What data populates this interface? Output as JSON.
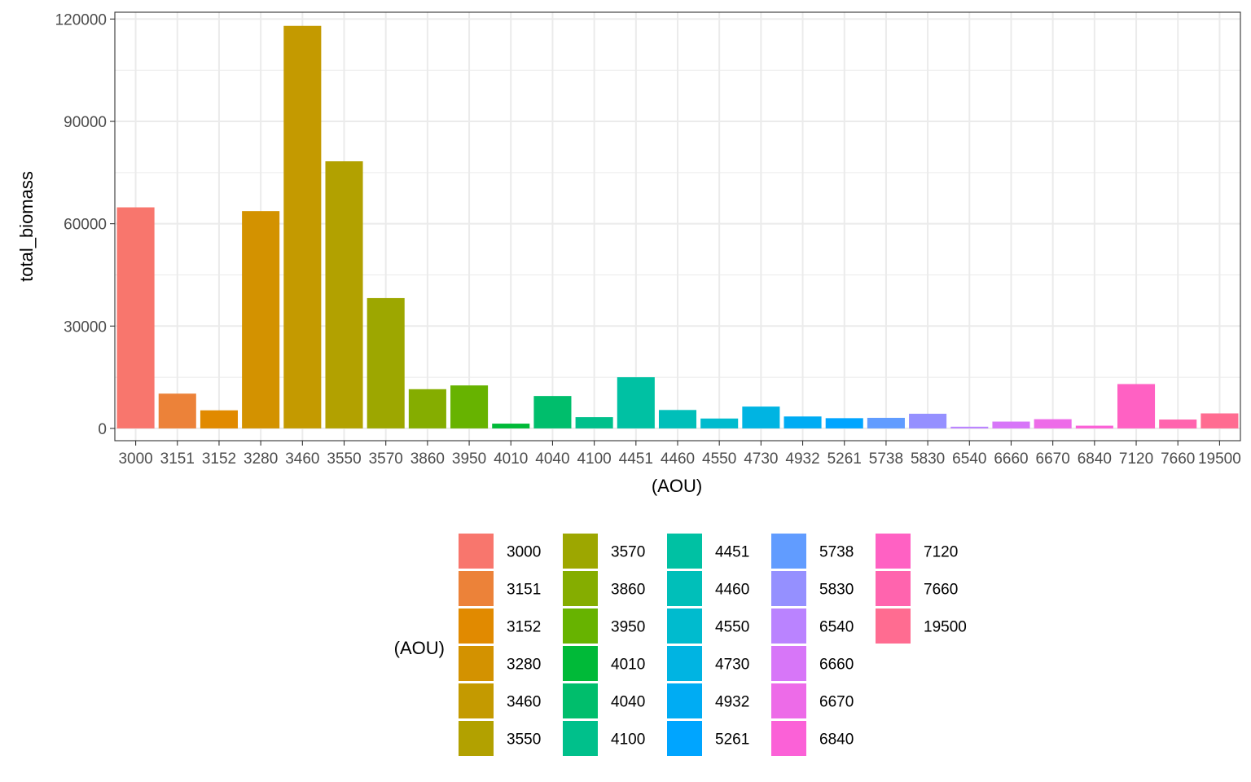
{
  "chart_data": {
    "type": "bar",
    "xlabel": "(AOU)",
    "ylabel": "total_biomass",
    "ylim": [
      -3600,
      122000
    ],
    "yticks": [
      0,
      30000,
      60000,
      90000,
      120000
    ],
    "ytick_labels": [
      "0",
      "30000",
      "60000",
      "90000",
      "120000"
    ],
    "grid": true,
    "legend_position": "bottom",
    "legend_title": "(AOU)",
    "categories": [
      "3000",
      "3151",
      "3152",
      "3280",
      "3460",
      "3550",
      "3570",
      "3860",
      "3950",
      "4010",
      "4040",
      "4100",
      "4451",
      "4460",
      "4550",
      "4730",
      "4932",
      "5261",
      "5738",
      "5830",
      "6540",
      "6660",
      "6670",
      "6840",
      "7120",
      "7660",
      "19500"
    ],
    "values": [
      64800,
      10200,
      5300,
      63700,
      118000,
      78300,
      38200,
      11500,
      12600,
      1400,
      9500,
      3300,
      15000,
      5400,
      2900,
      6400,
      3500,
      3000,
      3100,
      4300,
      500,
      2000,
      2700,
      800,
      13000,
      2600,
      4400
    ],
    "colors": [
      "#F8766D",
      "#EC8239",
      "#E18A00",
      "#D39200",
      "#C49A00",
      "#B2A100",
      "#9DA700",
      "#85AD00",
      "#67B300",
      "#00BA38",
      "#00BE6C",
      "#00C08B",
      "#00C1A3",
      "#00BFB9",
      "#00BBCE",
      "#00B4E2",
      "#00ACF3",
      "#00A5FF",
      "#619CFF",
      "#9590FF",
      "#BA83FF",
      "#D776F8",
      "#ED6BE8",
      "#FB61D7",
      "#FF61C3",
      "#FF64AE",
      "#FF6C91"
    ]
  }
}
